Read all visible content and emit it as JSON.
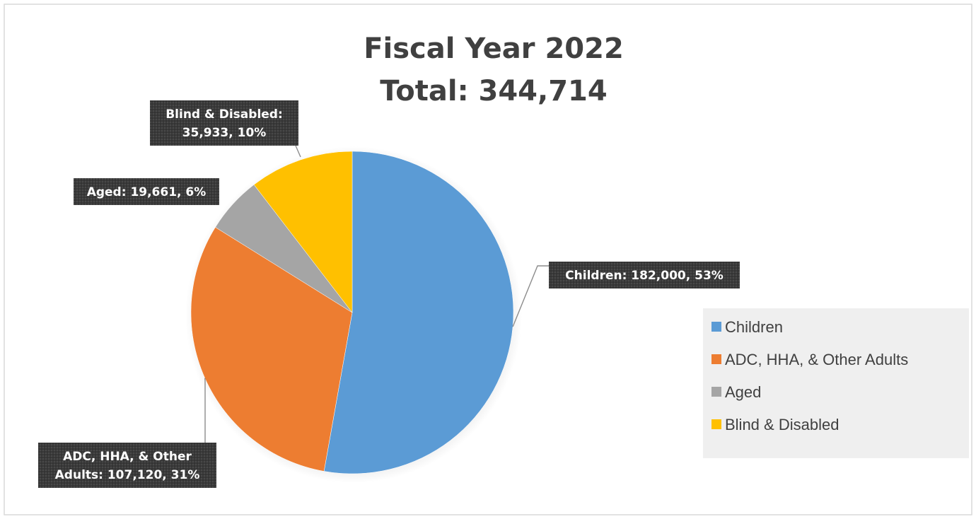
{
  "chart_data": {
    "type": "pie",
    "title": "Fiscal Year 2022",
    "subtitle": "Total: 344,714",
    "categories": [
      "Children",
      "ADC, HHA, & Other Adults",
      "Aged",
      "Blind & Disabled"
    ],
    "values": [
      182000,
      107120,
      19661,
      35933
    ],
    "colors": [
      "#5b9bd5",
      "#ed7d31",
      "#a5a5a5",
      "#ffc000"
    ],
    "data_labels": [
      [
        "Children: 182,000, 53%"
      ],
      [
        "ADC, HHA, & Other",
        "Adults: 107,120, 31%"
      ],
      [
        "Aged: 19,661, 6%"
      ],
      [
        "Blind & Disabled:",
        "35,933, 10%"
      ]
    ],
    "legend": {
      "position": "right",
      "entries": [
        "Children",
        "ADC, HHA, & Other Adults",
        "Aged",
        "Blind & Disabled"
      ]
    }
  }
}
